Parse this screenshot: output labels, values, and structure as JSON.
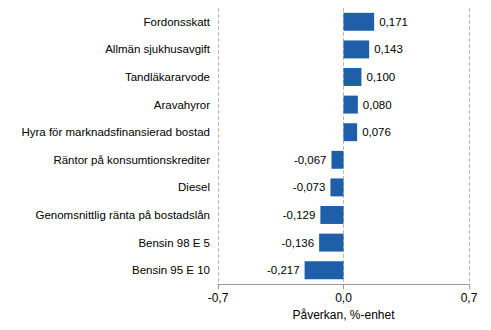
{
  "chart_data": {
    "type": "bar",
    "orientation": "horizontal",
    "categories": [
      "Fordonsskatt",
      "Allmän sjukhusavgift",
      "Tandläkararvode",
      "Aravahyror",
      "Hyra för marknadsfinansierad bostad",
      "Räntor på konsumtionskrediter",
      "Diesel",
      "Genomsnittlig ränta på bostadslån",
      "Bensin 98 E 5",
      "Bensin 95 E 10"
    ],
    "values": [
      0.171,
      0.143,
      0.1,
      0.08,
      0.076,
      -0.067,
      -0.073,
      -0.129,
      -0.136,
      -0.217
    ],
    "value_labels": [
      "0,171",
      "0,143",
      "0,100",
      "0,080",
      "0,076",
      "-0,067",
      "-0,073",
      "-0,129",
      "-0,136",
      "-0,217"
    ],
    "data_labels": true,
    "color": "#1f5fa9",
    "xlabel": "Påverkan, %-enhet",
    "xlim": [
      -0.7,
      0.7
    ],
    "xticks": [
      {
        "value": -0.7,
        "label": "-0,7"
      },
      {
        "value": 0,
        "label": "0,0"
      },
      {
        "value": 0.7,
        "label": "0,7"
      }
    ],
    "grid": true
  }
}
